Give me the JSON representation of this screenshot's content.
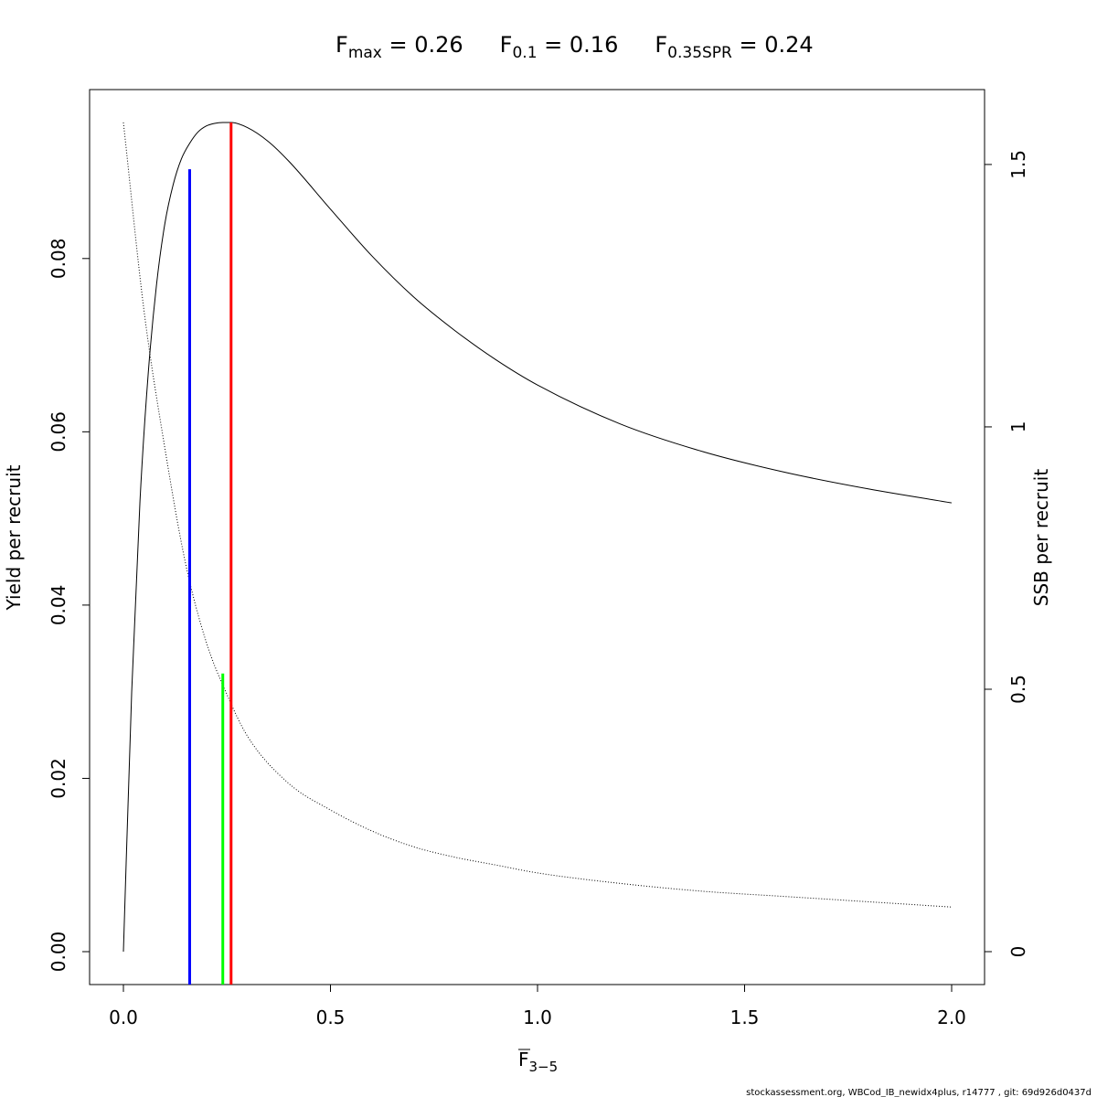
{
  "chart_data": {
    "type": "line",
    "title_parts": [
      {
        "main": "F",
        "sub": "max",
        "value": "= 0.26"
      },
      {
        "main": "F",
        "sub": "0.1",
        "value": "= 0.16"
      },
      {
        "main": "F",
        "sub": "0.35SPR",
        "value": "= 0.24"
      }
    ],
    "xlabel": {
      "main": "F",
      "sub": "3−5"
    },
    "ylabel_left": "Yield per recruit",
    "ylabel_right": "SSB per recruit",
    "xlim": [
      0,
      2
    ],
    "ylim_left": [
      0,
      0.0957
    ],
    "ylim_right": [
      0,
      1.58
    ],
    "x_ticks": [
      "0.0",
      "0.5",
      "1.0",
      "1.5",
      "2.0"
    ],
    "x_tick_values": [
      0,
      0.5,
      1.0,
      1.5,
      2.0
    ],
    "y_left_ticks": [
      "0.00",
      "0.02",
      "0.04",
      "0.06",
      "0.08"
    ],
    "y_left_tick_values": [
      0,
      0.02,
      0.04,
      0.06,
      0.08
    ],
    "y_right_ticks": [
      "0",
      "0.5",
      "1",
      "1.5"
    ],
    "y_right_tick_values": [
      0,
      0.5,
      1,
      1.5
    ],
    "series": [
      {
        "axis": "left",
        "style": "solid",
        "color": "#000000",
        "x": [
          0,
          0.02,
          0.04,
          0.06,
          0.08,
          0.1,
          0.12,
          0.14,
          0.16,
          0.18,
          0.2,
          0.22,
          0.24,
          0.26,
          0.3,
          0.35,
          0.4,
          0.5,
          0.6,
          0.7,
          0.8,
          0.9,
          1.0,
          1.2,
          1.4,
          1.6,
          1.8,
          2.0
        ],
        "y": [
          0,
          0.03,
          0.052,
          0.0668,
          0.077,
          0.084,
          0.0885,
          0.0915,
          0.0933,
          0.0946,
          0.0953,
          0.0956,
          0.0957,
          0.0957,
          0.0951,
          0.0935,
          0.0912,
          0.0857,
          0.0803,
          0.0756,
          0.0717,
          0.0683,
          0.0654,
          0.0609,
          0.0577,
          0.0553,
          0.0534,
          0.0518
        ]
      },
      {
        "axis": "right",
        "style": "dotted",
        "color": "#000000",
        "x": [
          0,
          0.05,
          0.1,
          0.15,
          0.2,
          0.25,
          0.3,
          0.4,
          0.5,
          0.6,
          0.7,
          0.8,
          0.9,
          1.0,
          1.2,
          1.4,
          1.6,
          1.8,
          2.0
        ],
        "y": [
          1.58,
          1.22,
          0.96,
          0.74,
          0.59,
          0.49,
          0.41,
          0.32,
          0.27,
          0.23,
          0.2,
          0.18,
          0.165,
          0.15,
          0.13,
          0.115,
          0.105,
          0.095,
          0.085
        ]
      }
    ],
    "reference_lines": [
      {
        "name": "F0.1",
        "x": 0.16,
        "y_left_top": 0.0903,
        "color": "#0000ff"
      },
      {
        "name": "F0.35SPR",
        "x": 0.24,
        "y_left_top": 0.0321,
        "color": "#00ff00"
      },
      {
        "name": "Fmax",
        "x": 0.26,
        "y_left_top": 0.0957,
        "color": "#ff0000"
      }
    ],
    "footer": "stockassessment.org, WBCod_IB_newidx4plus, r14777 , git: 69d926d0437d"
  }
}
